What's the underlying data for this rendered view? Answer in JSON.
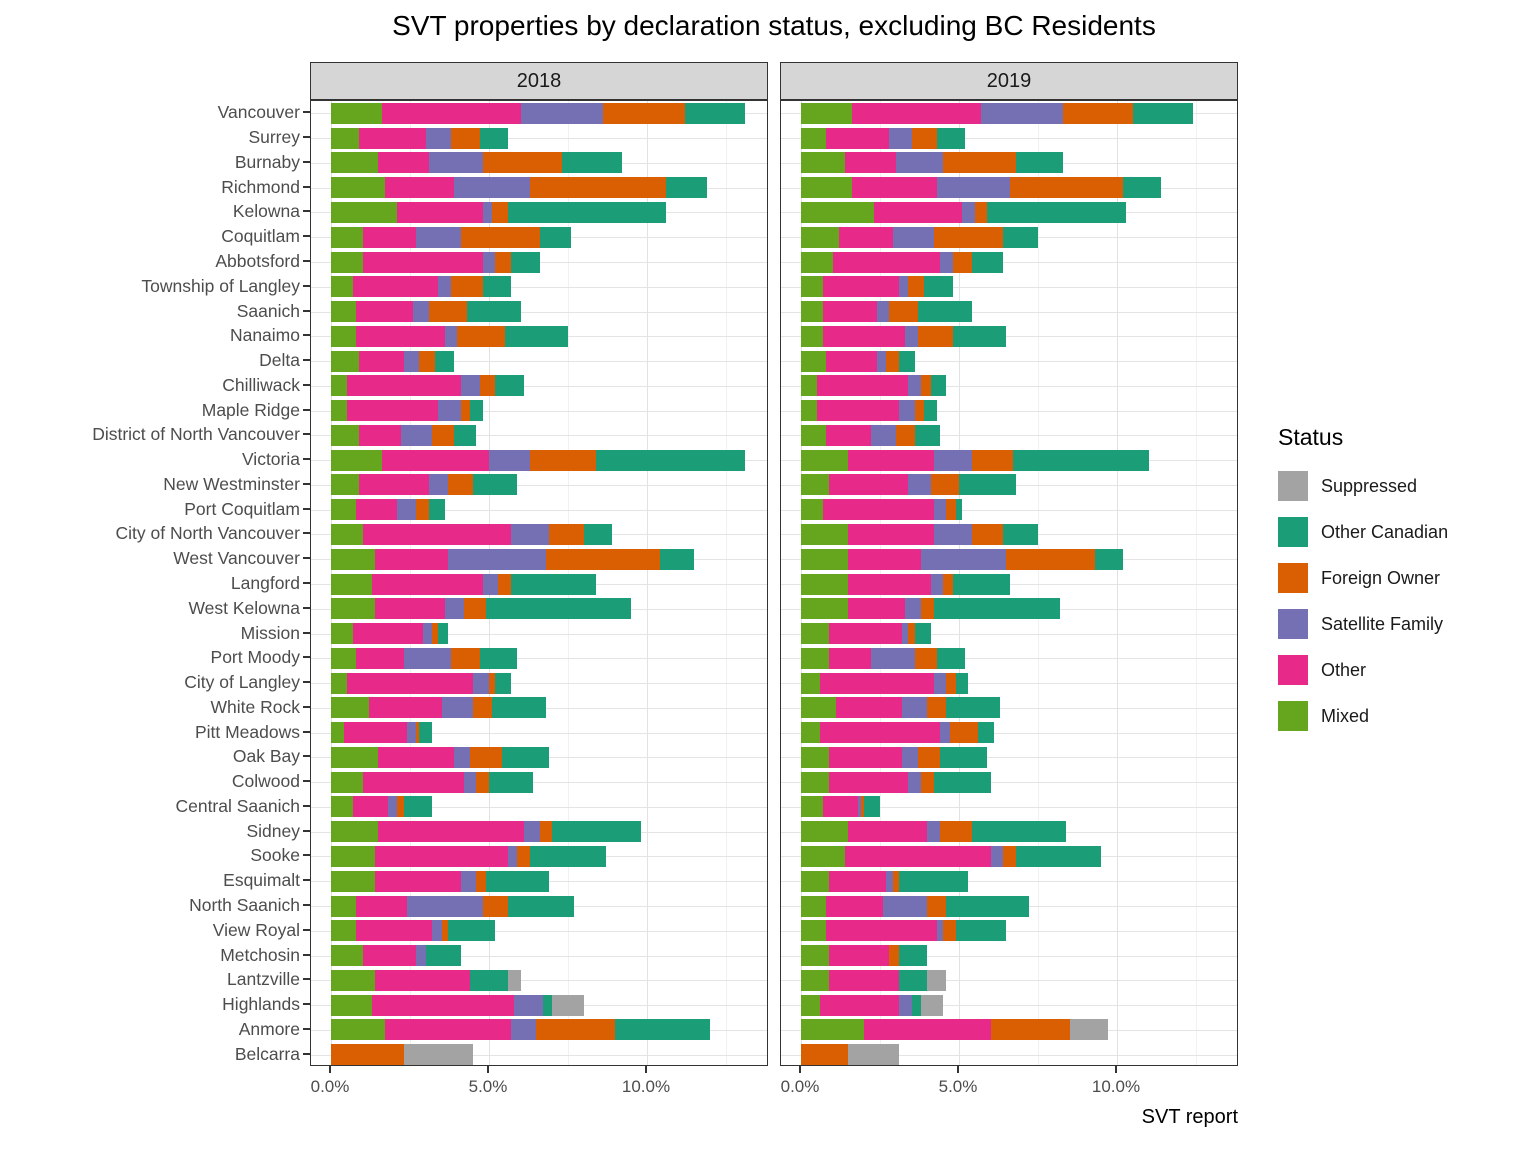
{
  "chart_data": {
    "type": "bar",
    "variant": "stacked-horizontal-faceted",
    "title": "SVT properties by declaration status, excluding BC Residents",
    "xlabel": "SVT report",
    "legend_title": "Status",
    "xlim": [
      0,
      14
    ],
    "grid": true,
    "legend_position": "right",
    "x_ticks": [
      {
        "value": 0,
        "label": "0.0%"
      },
      {
        "value": 5,
        "label": "5.0%"
      },
      {
        "value": 10,
        "label": "10.0%"
      }
    ],
    "minor_gridlines": [
      2.5,
      7.5,
      12.5
    ],
    "legend": [
      {
        "label": "Suppressed",
        "color": "#A3A3A3"
      },
      {
        "label": "Other Canadian",
        "color": "#1B9E77"
      },
      {
        "label": "Foreign Owner",
        "color": "#D95F02"
      },
      {
        "label": "Satellite Family",
        "color": "#7570B3"
      },
      {
        "label": "Other",
        "color": "#E7298A"
      },
      {
        "label": "Mixed",
        "color": "#66A61E"
      }
    ],
    "stack_order": [
      "Mixed",
      "Other",
      "Satellite Family",
      "Foreign Owner",
      "Other Canadian",
      "Suppressed"
    ],
    "categories": [
      "Vancouver",
      "Surrey",
      "Burnaby",
      "Richmond",
      "Kelowna",
      "Coquitlam",
      "Abbotsford",
      "Township of Langley",
      "Saanich",
      "Nanaimo",
      "Delta",
      "Chilliwack",
      "Maple Ridge",
      "District of North Vancouver",
      "Victoria",
      "New Westminster",
      "Port Coquitlam",
      "City of North Vancouver",
      "West Vancouver",
      "Langford",
      "West Kelowna",
      "Mission",
      "Port Moody",
      "City of Langley",
      "White Rock",
      "Pitt Meadows",
      "Oak Bay",
      "Colwood",
      "Central Saanich",
      "Sidney",
      "Sooke",
      "Esquimalt",
      "North Saanich",
      "View Royal",
      "Metchosin",
      "Lantzville",
      "Highlands",
      "Anmore",
      "Belcarra"
    ],
    "facets": [
      {
        "label": "2018",
        "series": {
          "Mixed": [
            1.6,
            0.9,
            1.5,
            1.7,
            2.1,
            1.0,
            1.0,
            0.7,
            0.8,
            0.8,
            0.9,
            0.5,
            0.5,
            0.9,
            1.6,
            0.9,
            0.8,
            1.0,
            1.4,
            1.3,
            1.4,
            0.7,
            0.8,
            0.5,
            1.2,
            0.4,
            1.5,
            1.0,
            0.7,
            1.5,
            1.4,
            1.4,
            0.8,
            0.8,
            1.0,
            1.4,
            1.3,
            1.7,
            0.0
          ],
          "Other": [
            4.4,
            2.1,
            1.6,
            2.2,
            2.7,
            1.7,
            3.8,
            2.7,
            1.8,
            2.8,
            1.4,
            3.6,
            2.9,
            1.3,
            3.4,
            2.2,
            1.3,
            4.7,
            2.3,
            3.5,
            2.2,
            2.2,
            1.5,
            4.0,
            2.3,
            2.0,
            2.4,
            3.2,
            1.1,
            4.6,
            4.2,
            2.7,
            1.6,
            2.4,
            1.7,
            3.0,
            4.5,
            4.0,
            0.0
          ],
          "Satellite Family": [
            2.6,
            0.8,
            1.7,
            2.4,
            0.3,
            1.4,
            0.4,
            0.4,
            0.5,
            0.4,
            0.5,
            0.6,
            0.7,
            1.0,
            1.3,
            0.6,
            0.6,
            1.2,
            3.1,
            0.5,
            0.6,
            0.3,
            1.5,
            0.5,
            1.0,
            0.3,
            0.5,
            0.4,
            0.3,
            0.5,
            0.3,
            0.5,
            2.4,
            0.3,
            0.3,
            0.0,
            0.9,
            0.8,
            0.0
          ],
          "Foreign Owner": [
            2.6,
            0.9,
            2.5,
            4.3,
            0.5,
            2.5,
            0.5,
            1.0,
            1.2,
            1.5,
            0.5,
            0.5,
            0.3,
            0.7,
            2.1,
            0.8,
            0.4,
            1.1,
            3.6,
            0.4,
            0.7,
            0.2,
            0.9,
            0.2,
            0.6,
            0.1,
            1.0,
            0.4,
            0.2,
            0.4,
            0.4,
            0.3,
            0.8,
            0.2,
            0.0,
            0.0,
            0.0,
            2.5,
            2.3
          ],
          "Other Canadian": [
            1.9,
            0.9,
            1.9,
            1.3,
            5.0,
            1.0,
            0.9,
            0.9,
            1.7,
            2.0,
            0.6,
            0.9,
            0.4,
            0.7,
            4.7,
            1.4,
            0.5,
            0.9,
            1.1,
            2.7,
            4.6,
            0.3,
            1.2,
            0.5,
            1.7,
            0.4,
            1.5,
            1.4,
            0.9,
            2.8,
            2.4,
            2.0,
            2.1,
            1.5,
            1.1,
            1.2,
            0.3,
            3.0,
            0.0
          ],
          "Suppressed": [
            0,
            0,
            0,
            0,
            0,
            0,
            0,
            0,
            0,
            0,
            0,
            0,
            0,
            0,
            0,
            0,
            0,
            0,
            0,
            0,
            0,
            0,
            0,
            0,
            0,
            0,
            0,
            0,
            0,
            0,
            0,
            0,
            0,
            0,
            0,
            0.4,
            1.0,
            0,
            2.2
          ]
        }
      },
      {
        "label": "2019",
        "series": {
          "Mixed": [
            1.6,
            0.8,
            1.4,
            1.6,
            2.3,
            1.2,
            1.0,
            0.7,
            0.7,
            0.7,
            0.8,
            0.5,
            0.5,
            0.8,
            1.5,
            0.9,
            0.7,
            1.5,
            1.5,
            1.5,
            1.5,
            0.9,
            0.9,
            0.6,
            1.1,
            0.6,
            0.9,
            0.9,
            0.7,
            1.5,
            1.4,
            0.9,
            0.8,
            0.8,
            0.9,
            0.9,
            0.6,
            2.0,
            0.0
          ],
          "Other": [
            4.1,
            2.0,
            1.6,
            2.7,
            2.8,
            1.7,
            3.4,
            2.4,
            1.7,
            2.6,
            1.6,
            2.9,
            2.6,
            1.4,
            2.7,
            2.5,
            3.5,
            2.7,
            2.3,
            2.6,
            1.8,
            2.3,
            1.3,
            3.6,
            2.1,
            3.8,
            2.3,
            2.5,
            1.1,
            2.5,
            4.6,
            1.8,
            1.8,
            3.5,
            1.9,
            2.2,
            2.5,
            4.0,
            0.0
          ],
          "Satellite Family": [
            2.6,
            0.7,
            1.5,
            2.3,
            0.4,
            1.3,
            0.4,
            0.3,
            0.4,
            0.4,
            0.3,
            0.4,
            0.5,
            0.8,
            1.2,
            0.7,
            0.4,
            1.2,
            2.7,
            0.4,
            0.5,
            0.2,
            1.4,
            0.4,
            0.8,
            0.3,
            0.5,
            0.4,
            0.1,
            0.4,
            0.4,
            0.2,
            1.4,
            0.2,
            0.0,
            0.0,
            0.4,
            0.0,
            0.0
          ],
          "Foreign Owner": [
            2.2,
            0.8,
            2.3,
            3.6,
            0.4,
            2.2,
            0.6,
            0.5,
            0.9,
            1.1,
            0.4,
            0.3,
            0.3,
            0.6,
            1.3,
            0.9,
            0.3,
            1.0,
            2.8,
            0.3,
            0.4,
            0.2,
            0.7,
            0.3,
            0.6,
            0.9,
            0.7,
            0.4,
            0.1,
            1.0,
            0.4,
            0.2,
            0.6,
            0.4,
            0.3,
            0.0,
            0.0,
            2.5,
            1.5
          ],
          "Other Canadian": [
            1.9,
            0.9,
            1.5,
            1.2,
            4.4,
            1.1,
            1.0,
            0.9,
            1.7,
            1.7,
            0.5,
            0.5,
            0.4,
            0.8,
            4.3,
            1.8,
            0.2,
            1.1,
            0.9,
            1.8,
            4.0,
            0.5,
            0.9,
            0.4,
            1.7,
            0.5,
            1.5,
            1.8,
            0.5,
            3.0,
            2.7,
            2.2,
            2.6,
            1.6,
            0.9,
            0.9,
            0.3,
            0.0,
            0.0
          ],
          "Suppressed": [
            0,
            0,
            0,
            0,
            0,
            0,
            0,
            0,
            0,
            0,
            0,
            0,
            0,
            0,
            0,
            0,
            0,
            0,
            0,
            0,
            0,
            0,
            0,
            0,
            0,
            0,
            0,
            0,
            0,
            0,
            0,
            0,
            0,
            0,
            0,
            0.6,
            0.7,
            1.2,
            1.6
          ]
        }
      }
    ]
  }
}
